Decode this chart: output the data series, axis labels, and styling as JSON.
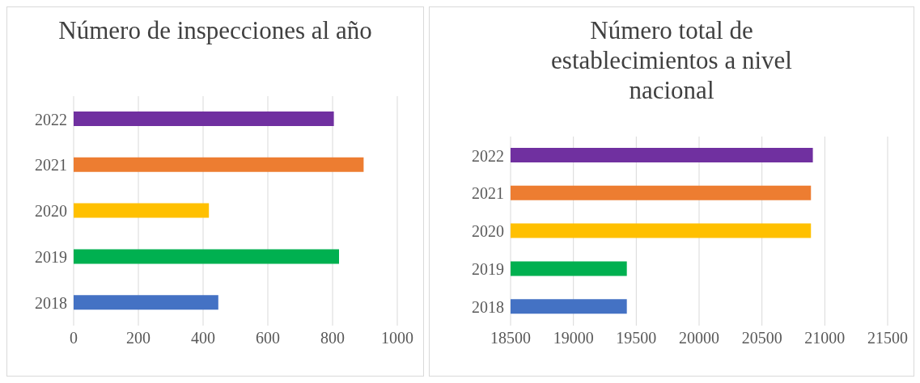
{
  "chart_data": [
    {
      "type": "bar",
      "orientation": "horizontal",
      "title": "Número de inspecciones al año",
      "categories": [
        "2022",
        "2021",
        "2020",
        "2019",
        "2018"
      ],
      "values": [
        804,
        896,
        418,
        820,
        447
      ],
      "colors": [
        "#7030a0",
        "#ed7d31",
        "#ffc000",
        "#00b050",
        "#4472c4"
      ],
      "xlim": [
        0,
        1000
      ],
      "xticks": [
        0,
        200,
        400,
        600,
        800,
        1000
      ],
      "grid": "x"
    },
    {
      "type": "bar",
      "orientation": "horizontal",
      "title": "Número total de establecimientos a nivel nacional",
      "categories": [
        "2022",
        "2021",
        "2020",
        "2019",
        "2018"
      ],
      "values": [
        20905,
        20890,
        20890,
        19425,
        19425
      ],
      "colors": [
        "#7030a0",
        "#ed7d31",
        "#ffc000",
        "#00b050",
        "#4472c4"
      ],
      "xlim": [
        18500,
        21500
      ],
      "xticks": [
        18500,
        19000,
        19500,
        20000,
        20500,
        21000,
        21500
      ],
      "grid": "x"
    }
  ]
}
